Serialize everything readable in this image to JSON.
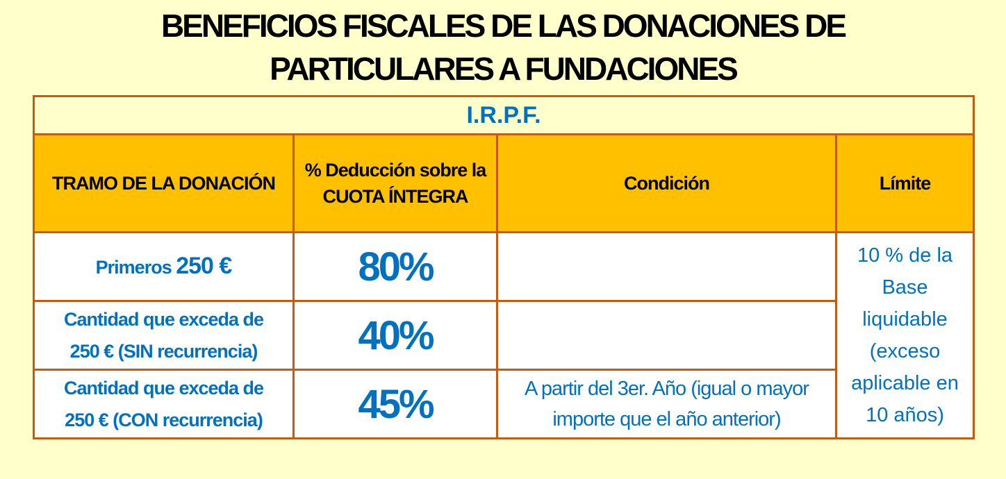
{
  "title": {
    "line1": "BENEFICIOS FISCALES DE LAS DONACIONES DE",
    "line2": "PARTICULARES A FUNDACIONES"
  },
  "table": {
    "section": "I.R.P.F.",
    "headers": [
      "TRAMO DE LA DONACIÓN",
      "% Deducción sobre la CUOTA ÍNTEGRA",
      "Condición",
      "Límite"
    ],
    "rows": [
      {
        "tramo_a": "Primeros",
        "tramo_b": "250 €",
        "pct": "80%",
        "cond": ""
      },
      {
        "tramo_a": "Cantidad que exceda de",
        "tramo_b": "250 € (SIN recurrencia)",
        "pct": "40%",
        "cond": ""
      },
      {
        "tramo_a": "Cantidad que exceda de",
        "tramo_b": "250 € (CON recurrencia)",
        "pct": "45%",
        "cond": "A partir del 3er. Año (igual o mayor importe que el año anterior)"
      }
    ],
    "limite": "10 % de la Base liquidable (exceso aplicable en 10 años)"
  },
  "colors": {
    "background": "#FFFFCC",
    "header": "#FFC000",
    "border": "#C55A11",
    "accent": "#0070C0"
  }
}
